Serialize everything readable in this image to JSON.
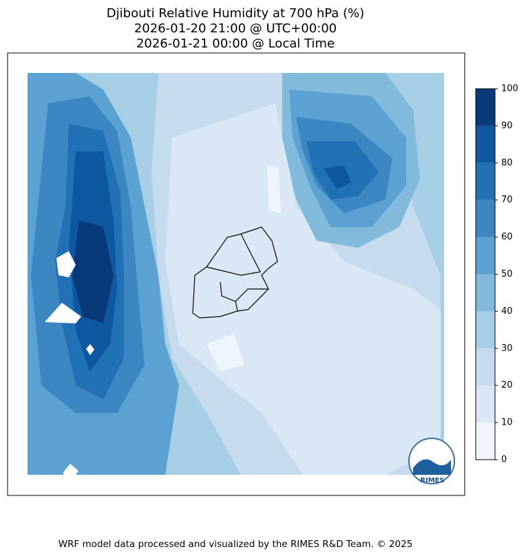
{
  "header": {
    "title_lines": [
      "Djibouti Relative Humidity at 700 hPa (%)",
      "2026-01-20 21:00 @ UTC+00:00",
      "2026-01-21 00:00 @ Local Time"
    ]
  },
  "colorbar": {
    "clim": [
      0,
      100
    ],
    "ticks": [
      0,
      10,
      20,
      30,
      40,
      50,
      60,
      70,
      80,
      90,
      100
    ],
    "colors": [
      "#eff5fc",
      "#dae8f5",
      "#c7dbef",
      "#a6cee4",
      "#81badb",
      "#5ba1d1",
      "#3c87c2",
      "#2271b5",
      "#0e58a2",
      "#083a7a"
    ]
  },
  "logo": {
    "text": "RIMES"
  },
  "footer": {
    "text": "WRF model data processed and visualized by the RIMES R&D Team. © 2025"
  }
}
